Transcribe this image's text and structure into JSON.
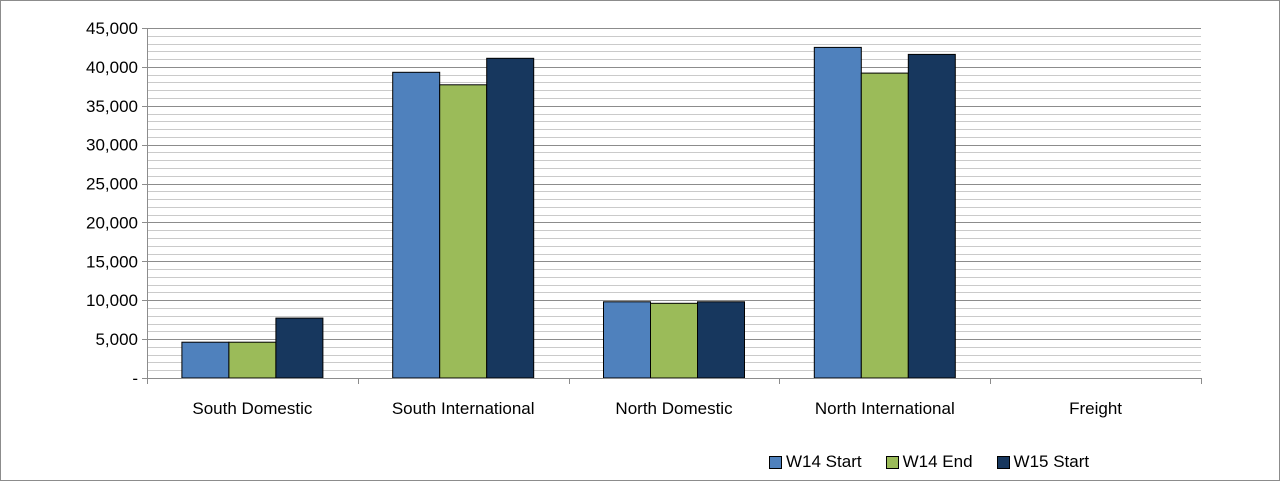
{
  "chart_data": {
    "type": "bar",
    "categories": [
      "South Domestic",
      "South International",
      "North Domestic",
      "North International",
      "Freight"
    ],
    "series": [
      {
        "name": "W14 Start",
        "color": "#4f81bd",
        "values": [
          4600,
          39300,
          9800,
          42500,
          0
        ]
      },
      {
        "name": "W14 End",
        "color": "#9bbb59",
        "values": [
          4600,
          37700,
          9600,
          39200,
          0
        ]
      },
      {
        "name": "W15 Start",
        "color": "#17375e",
        "values": [
          7700,
          41100,
          9800,
          41600,
          0
        ]
      }
    ],
    "ylim": [
      0,
      45000
    ],
    "major_tick_step": 5000,
    "minor_tick_step": 1000,
    "y_tick_labels": [
      "-",
      "5,000",
      "10,000",
      "15,000",
      "20,000",
      "25,000",
      "30,000",
      "35,000",
      "40,000",
      "45,000"
    ],
    "grid": true,
    "legend_position": "bottom-right"
  }
}
